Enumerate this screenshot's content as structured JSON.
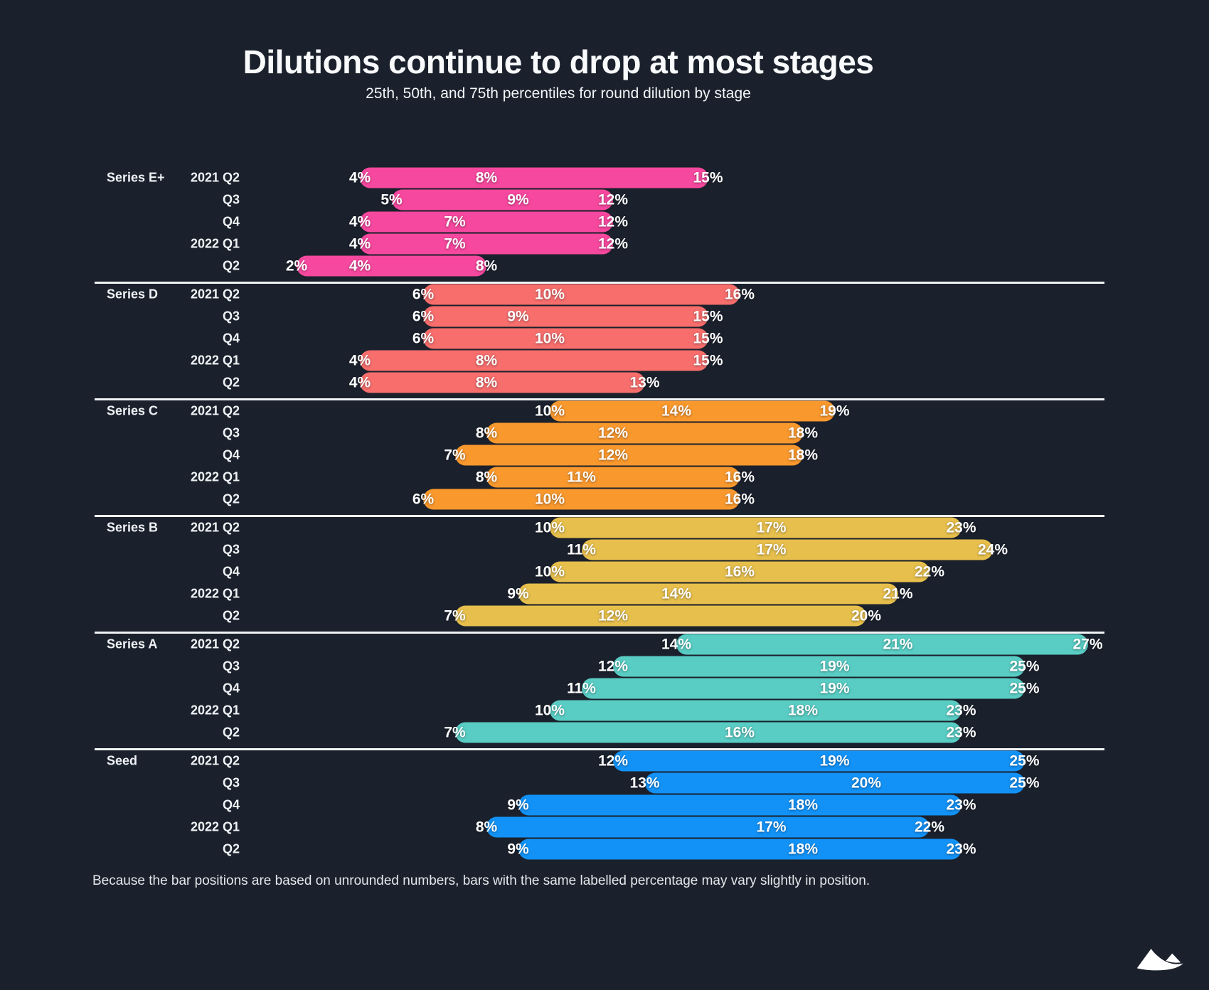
{
  "title": "Dilutions continue to drop at most stages",
  "subtitle": "25th, 50th, and 75th percentiles for round dilution by stage",
  "footnote": "Because the bar positions are based on unrounded numbers, bars with the same labelled percentage may vary slightly in position.",
  "colors": {
    "background": "#1B212C",
    "divider": "#F0F3F5",
    "text": "#EFF2F5"
  },
  "logo": "mountain-peaks-logo",
  "chart_data": {
    "type": "bar",
    "subtype": "horizontal-range-bar",
    "unit": "percent",
    "xlim": [
      0,
      28
    ],
    "grid": false,
    "legend": false,
    "title": "Dilutions continue to drop at most stages",
    "subtitle": "25th, 50th, and 75th percentiles for round dilution by stage",
    "percentiles_shown": [
      25,
      50,
      75
    ],
    "categories": [
      "2021 Q2",
      "Q3",
      "Q4",
      "2022 Q1",
      "Q2"
    ],
    "sections": [
      {
        "stage": "Series E+",
        "color": "#F6489E",
        "rows": [
          {
            "quarter": "2021 Q2",
            "p25": 4,
            "p50": 8,
            "p75": 15
          },
          {
            "quarter": "Q3",
            "p25": 5,
            "p50": 9,
            "p75": 12
          },
          {
            "quarter": "Q4",
            "p25": 4,
            "p50": 7,
            "p75": 12
          },
          {
            "quarter": "2022 Q1",
            "p25": 4,
            "p50": 7,
            "p75": 12
          },
          {
            "quarter": "Q2",
            "p25": 2,
            "p50": 4,
            "p75": 8
          }
        ]
      },
      {
        "stage": "Series D",
        "color": "#F76E6C",
        "rows": [
          {
            "quarter": "2021 Q2",
            "p25": 6,
            "p50": 10,
            "p75": 16
          },
          {
            "quarter": "Q3",
            "p25": 6,
            "p50": 9,
            "p75": 15
          },
          {
            "quarter": "Q4",
            "p25": 6,
            "p50": 10,
            "p75": 15
          },
          {
            "quarter": "2022 Q1",
            "p25": 4,
            "p50": 8,
            "p75": 15
          },
          {
            "quarter": "Q2",
            "p25": 4,
            "p50": 8,
            "p75": 13
          }
        ]
      },
      {
        "stage": "Series C",
        "color": "#F9982D",
        "rows": [
          {
            "quarter": "2021 Q2",
            "p25": 10,
            "p50": 14,
            "p75": 19
          },
          {
            "quarter": "Q3",
            "p25": 8,
            "p50": 12,
            "p75": 18
          },
          {
            "quarter": "Q4",
            "p25": 7,
            "p50": 12,
            "p75": 18
          },
          {
            "quarter": "2022 Q1",
            "p25": 8,
            "p50": 11,
            "p75": 16
          },
          {
            "quarter": "Q2",
            "p25": 6,
            "p50": 10,
            "p75": 16
          }
        ]
      },
      {
        "stage": "Series B",
        "color": "#E7BF4C",
        "rows": [
          {
            "quarter": "2021 Q2",
            "p25": 10,
            "p50": 17,
            "p75": 23
          },
          {
            "quarter": "Q3",
            "p25": 11,
            "p50": 17,
            "p75": 24
          },
          {
            "quarter": "Q4",
            "p25": 10,
            "p50": 16,
            "p75": 22
          },
          {
            "quarter": "2022 Q1",
            "p25": 9,
            "p50": 14,
            "p75": 21
          },
          {
            "quarter": "Q2",
            "p25": 7,
            "p50": 12,
            "p75": 20
          }
        ]
      },
      {
        "stage": "Series A",
        "color": "#59CDC4",
        "rows": [
          {
            "quarter": "2021 Q2",
            "p25": 14,
            "p50": 21,
            "p75": 27
          },
          {
            "quarter": "Q3",
            "p25": 12,
            "p50": 19,
            "p75": 25
          },
          {
            "quarter": "Q4",
            "p25": 11,
            "p50": 19,
            "p75": 25
          },
          {
            "quarter": "2022 Q1",
            "p25": 10,
            "p50": 18,
            "p75": 23
          },
          {
            "quarter": "Q2",
            "p25": 7,
            "p50": 16,
            "p75": 23
          }
        ]
      },
      {
        "stage": "Seed",
        "color": "#1292F7",
        "rows": [
          {
            "quarter": "2021 Q2",
            "p25": 12,
            "p50": 19,
            "p75": 25
          },
          {
            "quarter": "Q3",
            "p25": 13,
            "p50": 20,
            "p75": 25
          },
          {
            "quarter": "Q4",
            "p25": 9,
            "p50": 18,
            "p75": 23
          },
          {
            "quarter": "2022 Q1",
            "p25": 8,
            "p50": 17,
            "p75": 22
          },
          {
            "quarter": "Q2",
            "p25": 9,
            "p50": 18,
            "p75": 23
          }
        ]
      }
    ]
  }
}
